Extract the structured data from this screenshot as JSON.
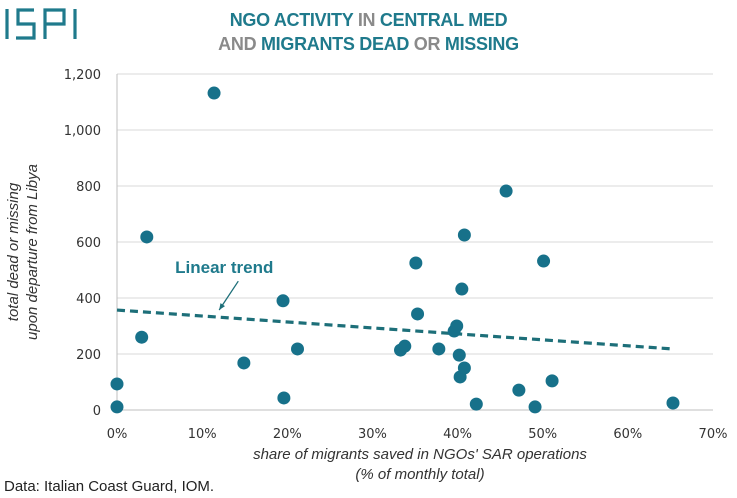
{
  "brand": {
    "logo_text": "ISPI",
    "color": "#1f7a8c"
  },
  "title": {
    "line1": [
      {
        "text": "NGO ACTIVITY ",
        "tone": "teal"
      },
      {
        "text": "IN ",
        "tone": "grey"
      },
      {
        "text": "CENTRAL MED",
        "tone": "teal"
      }
    ],
    "line2": [
      {
        "text": "AND ",
        "tone": "grey"
      },
      {
        "text": "MIGRANTS DEAD ",
        "tone": "teal"
      },
      {
        "text": "OR ",
        "tone": "grey"
      },
      {
        "text": "MISSING",
        "tone": "teal"
      }
    ]
  },
  "footer": "Data: Italian Coast Guard, IOM.",
  "colors": {
    "points": "#17718a",
    "trend": "#1d6f79",
    "grid": "#d9d9d9",
    "axis": "#bfbfbf"
  },
  "chart_data": {
    "type": "scatter",
    "title": "NGO ACTIVITY IN CENTRAL MED AND MIGRANTS DEAD OR MISSING",
    "xlabel_lines": [
      "share of migrants saved in NGOs' SAR operations",
      "(% of monthly total)"
    ],
    "ylabel_lines": [
      "total dead or missing",
      "upon departure from Libya"
    ],
    "xlim": [
      0,
      70
    ],
    "ylim": [
      0,
      1200
    ],
    "x_ticks": [
      0,
      10,
      20,
      30,
      40,
      50,
      60,
      70
    ],
    "x_tick_labels": [
      "0%",
      "10%",
      "20%",
      "30%",
      "40%",
      "50%",
      "60%",
      "70%"
    ],
    "y_ticks": [
      0,
      200,
      400,
      600,
      800,
      1000,
      1200
    ],
    "y_tick_labels": [
      "0",
      "200",
      "400",
      "600",
      "800",
      "1,000",
      "1,200"
    ],
    "grid": "horizontal",
    "points": [
      {
        "x": 0.0,
        "y": 93
      },
      {
        "x": 0.0,
        "y": 11
      },
      {
        "x": 2.9,
        "y": 260
      },
      {
        "x": 3.5,
        "y": 618
      },
      {
        "x": 11.4,
        "y": 1132
      },
      {
        "x": 14.9,
        "y": 168
      },
      {
        "x": 19.5,
        "y": 390
      },
      {
        "x": 19.6,
        "y": 43
      },
      {
        "x": 21.2,
        "y": 218
      },
      {
        "x": 33.3,
        "y": 214
      },
      {
        "x": 33.8,
        "y": 228
      },
      {
        "x": 35.1,
        "y": 525
      },
      {
        "x": 35.3,
        "y": 343
      },
      {
        "x": 37.8,
        "y": 218
      },
      {
        "x": 39.6,
        "y": 282
      },
      {
        "x": 39.9,
        "y": 300
      },
      {
        "x": 40.2,
        "y": 196
      },
      {
        "x": 40.3,
        "y": 118
      },
      {
        "x": 40.5,
        "y": 432
      },
      {
        "x": 40.8,
        "y": 150
      },
      {
        "x": 40.8,
        "y": 625
      },
      {
        "x": 42.2,
        "y": 21
      },
      {
        "x": 45.7,
        "y": 782
      },
      {
        "x": 47.2,
        "y": 71
      },
      {
        "x": 49.1,
        "y": 11
      },
      {
        "x": 50.1,
        "y": 532
      },
      {
        "x": 51.1,
        "y": 104
      },
      {
        "x": 65.3,
        "y": 25
      }
    ],
    "trend": {
      "label": "Linear trend",
      "x": [
        0,
        65.3
      ],
      "y": [
        357,
        218
      ]
    },
    "annotation": {
      "text": "Linear trend",
      "x": 12.6,
      "y": 510,
      "arrow_to": {
        "x": 12.0,
        "y": 350
      }
    }
  }
}
